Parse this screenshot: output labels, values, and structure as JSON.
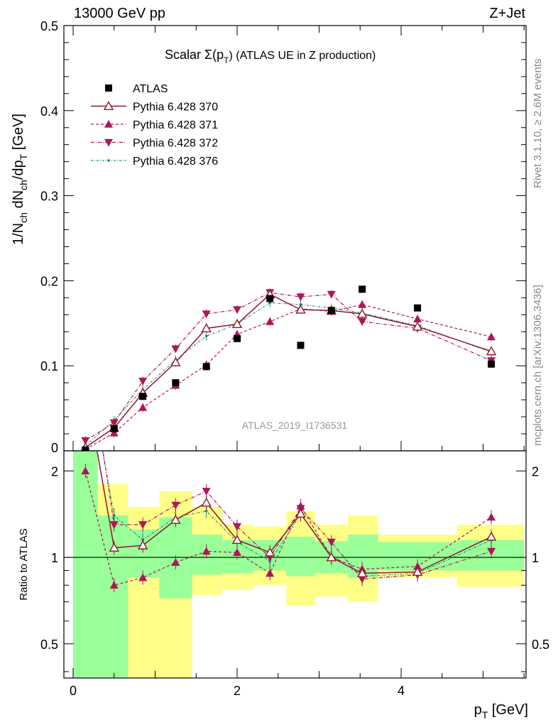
{
  "header": {
    "left": "13000 GeV pp",
    "right": "Z+Jet"
  },
  "plot_title": {
    "prefix": "Scalar Σ(p",
    "sub": "T",
    "suffix": ") (ATLAS UE in Z production)"
  },
  "side_labels": {
    "rivet": "Rivet 3.1.10, ≥ 2.6M events",
    "mcplots": "mcplots.cern.ch [arXiv:1306.3436]"
  },
  "watermark": "ATLAS_2019_I1736531",
  "y_axis_main": {
    "label": "1/N_ch dN_ch/dp_T [GeV]",
    "ticks": [
      "0",
      "0.1",
      "0.2",
      "0.3",
      "0.4",
      "0.5"
    ]
  },
  "y_axis_ratio": {
    "label": "Ratio to ATLAS",
    "ticks": [
      "0.5",
      "1",
      "2"
    ]
  },
  "x_axis": {
    "label": "p_T [GeV]",
    "ticks": [
      "0",
      "2",
      "4"
    ]
  },
  "legend": [
    {
      "label": "ATLAS"
    },
    {
      "label": "Pythia 6.428 370"
    },
    {
      "label": "Pythia 6.428 371"
    },
    {
      "label": "Pythia 6.428 372"
    },
    {
      "label": "Pythia 6.428 376"
    }
  ],
  "colors": {
    "data": "#000000",
    "p370": "#8b1a2b",
    "p371": "#b0155a",
    "p372": "#b0155a",
    "p376": "#1a8a7a",
    "band_inner": "#99ff99",
    "band_outer": "#ffff88"
  },
  "chart_data": {
    "type": "line",
    "x": [
      0.15,
      0.5,
      0.85,
      1.25,
      1.625,
      2.0,
      2.4,
      2.775,
      3.15,
      3.525,
      4.2,
      5.1
    ],
    "xlim": [
      -0.12,
      5.55
    ],
    "main": {
      "ylim": [
        0,
        0.5
      ],
      "data_values": [
        0.001,
        0.026,
        0.064,
        0.08,
        0.099,
        0.132,
        0.179,
        0.124,
        0.165,
        0.19,
        0.168,
        0.102
      ],
      "series": [
        {
          "name": "Pythia 6.428 370",
          "values": [
            0.004,
            0.027,
            0.068,
            0.104,
            0.144,
            0.149,
            0.184,
            0.166,
            0.165,
            0.161,
            0.146,
            0.117
          ]
        },
        {
          "name": "Pythia 6.428 371",
          "values": [
            0.002,
            0.021,
            0.051,
            0.077,
            0.101,
            0.137,
            0.152,
            0.167,
            0.164,
            0.172,
            0.155,
            0.134
          ]
        },
        {
          "name": "Pythia 6.428 372",
          "values": [
            0.012,
            0.033,
            0.082,
            0.12,
            0.161,
            0.166,
            0.186,
            0.181,
            0.184,
            0.152,
            0.144,
            0.106
          ]
        },
        {
          "name": "Pythia 6.428 376",
          "values": [
            0.006,
            0.036,
            0.072,
            0.107,
            0.135,
            0.149,
            0.174,
            0.172,
            0.168,
            0.162,
            0.147,
            0.116
          ]
        }
      ]
    },
    "ratio": {
      "ylim": [
        0.38,
        2.35
      ],
      "scale": "log",
      "bins": [
        [
          0.0,
          0.3
        ],
        [
          0.3,
          0.67
        ],
        [
          0.67,
          1.05
        ],
        [
          1.05,
          1.45
        ],
        [
          1.45,
          1.82
        ],
        [
          1.82,
          2.2
        ],
        [
          2.2,
          2.6
        ],
        [
          2.6,
          2.95
        ],
        [
          2.95,
          3.35
        ],
        [
          3.35,
          3.72
        ],
        [
          3.72,
          4.68
        ],
        [
          4.68,
          5.5
        ]
      ],
      "band_inner": [
        [
          0.0,
          10.0
        ],
        [
          0.3,
          1.4
        ],
        [
          0.85,
          1.25
        ],
        [
          0.72,
          1.38
        ],
        [
          0.87,
          1.2
        ],
        [
          0.88,
          1.15
        ],
        [
          0.9,
          1.15
        ],
        [
          0.86,
          1.18
        ],
        [
          0.88,
          1.14
        ],
        [
          0.85,
          1.2
        ],
        [
          0.9,
          1.13
        ],
        [
          0.9,
          1.15
        ]
      ],
      "band_outer": [
        [
          0.0,
          10.0
        ],
        [
          0.0,
          1.8
        ],
        [
          0.3,
          1.5
        ],
        [
          0.3,
          1.7
        ],
        [
          0.74,
          1.5
        ],
        [
          0.77,
          1.3
        ],
        [
          0.8,
          1.28
        ],
        [
          0.68,
          1.45
        ],
        [
          0.73,
          1.3
        ],
        [
          0.7,
          1.4
        ],
        [
          0.85,
          1.2
        ],
        [
          0.79,
          1.3
        ]
      ],
      "series": [
        {
          "name": "Pythia 6.428 370",
          "values": [
            4.0,
            1.08,
            1.1,
            1.35,
            1.55,
            1.15,
            1.04,
            1.42,
            1.0,
            0.88,
            0.89,
            1.18
          ]
        },
        {
          "name": "Pythia 6.428 371",
          "values": [
            2.0,
            0.8,
            0.85,
            0.96,
            1.05,
            1.04,
            0.88,
            1.51,
            1.0,
            0.91,
            0.93,
            1.38
          ]
        },
        {
          "name": "Pythia 6.428 372",
          "values": [
            6.0,
            1.3,
            1.3,
            1.52,
            1.7,
            1.28,
            1.0,
            1.48,
            1.13,
            0.84,
            0.87,
            1.05
          ]
        },
        {
          "name": "Pythia 6.428 376",
          "values": [
            5.0,
            1.4,
            1.15,
            1.38,
            1.45,
            1.13,
            0.97,
            1.41,
            1.02,
            0.86,
            0.88,
            1.15
          ]
        }
      ]
    }
  }
}
